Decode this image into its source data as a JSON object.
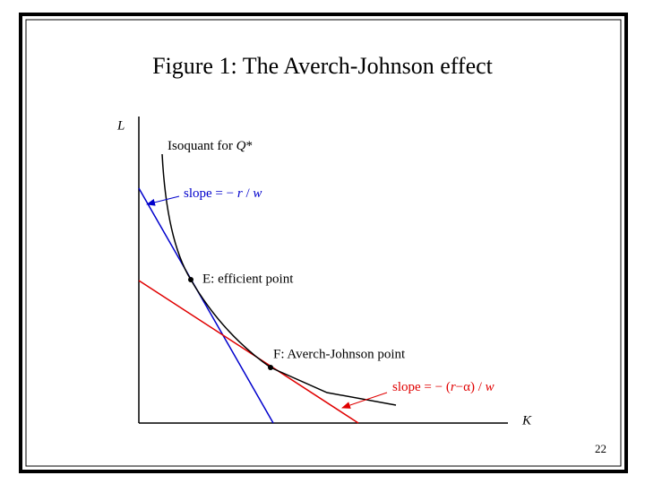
{
  "title": "Figure 1: The Averch-Johnson effect",
  "axes": {
    "y_label": "L",
    "x_label": "K"
  },
  "isoquant_label": [
    {
      "text": "Isoquant for ",
      "italic": false
    },
    {
      "text": "Q",
      "italic": true
    },
    {
      "text": "*",
      "italic": false
    }
  ],
  "blue_slope_label": [
    {
      "text": "slope = − ",
      "italic": false
    },
    {
      "text": "r",
      "italic": true
    },
    {
      "text": " / ",
      "italic": false
    },
    {
      "text": "w",
      "italic": true
    }
  ],
  "point_e_label": "E: efficient point",
  "point_f_label": "F: Averch-Johnson point",
  "red_slope_label": [
    {
      "text": "slope = − (",
      "italic": false
    },
    {
      "text": "r",
      "italic": true
    },
    {
      "text": "−α) / ",
      "italic": false
    },
    {
      "text": "w",
      "italic": true
    }
  ],
  "page_number": "22"
}
